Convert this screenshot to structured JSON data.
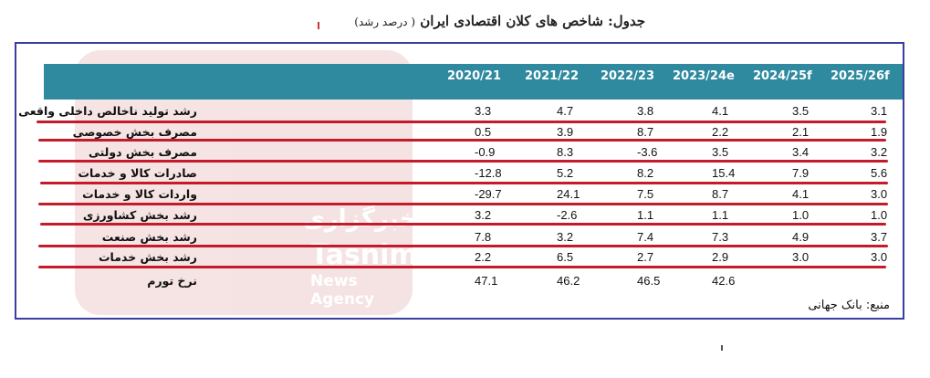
{
  "title": {
    "main": "جدول: شاخص های کلان اقتصادی ایران",
    "sub": "( درصد رشد)"
  },
  "watermark": {
    "line1": "خبرگزاری",
    "line2": "Tasnim",
    "line3": "News Agency"
  },
  "columns": [
    "2020/21",
    "2021/22",
    "2022/23",
    "2023/24e",
    "2024/25f",
    "2025/26f"
  ],
  "rows": [
    {
      "label": "رشد تولید ناخالص داخلی واقعی",
      "values": [
        "3.3",
        "4.7",
        "3.8",
        "4.1",
        "3.5",
        "3.1"
      ]
    },
    {
      "label": "مصرف بخش خصوصی",
      "values": [
        "0.5",
        "3.9",
        "8.7",
        "2.2",
        "2.1",
        "1.9"
      ]
    },
    {
      "label": "مصرف بخش دولتی",
      "values": [
        "-0.9",
        "8.3",
        "-3.6",
        "3.5",
        "3.4",
        "3.2"
      ]
    },
    {
      "label": "صادرات کالا و خدمات",
      "values": [
        "-12.8",
        "5.2",
        "8.2",
        "15.4",
        "7.9",
        "5.6"
      ]
    },
    {
      "label": "واردات کالا و خدمات",
      "values": [
        "-29.7",
        "24.1",
        "7.5",
        "8.7",
        "4.1",
        "3.0"
      ]
    },
    {
      "label": "رشد بخش کشاورزی",
      "values": [
        "3.2",
        "-2.6",
        "1.1",
        "1.1",
        "1.0",
        "1.0"
      ]
    },
    {
      "label": "رشد بخش صنعت",
      "values": [
        "7.8",
        "3.2",
        "7.4",
        "7.3",
        "4.9",
        "3.7"
      ]
    },
    {
      "label": "رشد بخش خدمات",
      "values": [
        "2.2",
        "6.5",
        "2.7",
        "2.9",
        "3.0",
        "3.0"
      ]
    },
    {
      "label": "نرخ تورم",
      "values": [
        "47.1",
        "46.2",
        "46.5",
        "42.6",
        "",
        ""
      ]
    }
  ],
  "source": "منبع: بانک جهانی",
  "colors": {
    "header": "#2f8aa0",
    "frame": "#3a3e9e",
    "underline": "#c51a2a",
    "watermark": "#f5e1e1"
  }
}
